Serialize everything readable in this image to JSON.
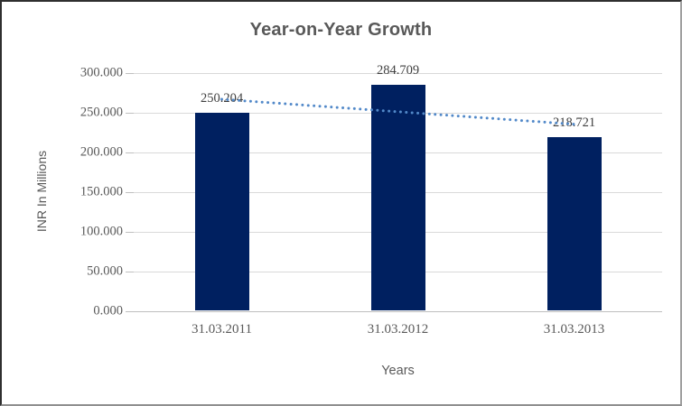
{
  "chart_data": {
    "type": "bar",
    "title": "Year-on-Year Growth",
    "categories": [
      "31.03.2011",
      "31.03.2012",
      "31.03.2013"
    ],
    "values": [
      250.204,
      284.709,
      218.721
    ],
    "data_labels": [
      "250.204",
      "284.709",
      "218.721"
    ],
    "xlabel": "Years",
    "ylabel": "INR In Millions",
    "ylim": [
      0,
      300
    ],
    "ytick_step": 50,
    "ytick_labels": [
      "0.000",
      "50.000",
      "100.000",
      "150.000",
      "200.000",
      "250.000",
      "300.000"
    ],
    "grid": true,
    "legend": "none",
    "trendline": {
      "type": "linear",
      "style": "dotted"
    },
    "colors": {
      "bar": "#002060",
      "trendline": "#5289c9",
      "grid": "#d9d9d9",
      "axis_line": "#bfbfbf",
      "title_text": "#595959",
      "tick_text": "#595959",
      "data_label_text": "#3f3f3f"
    }
  }
}
